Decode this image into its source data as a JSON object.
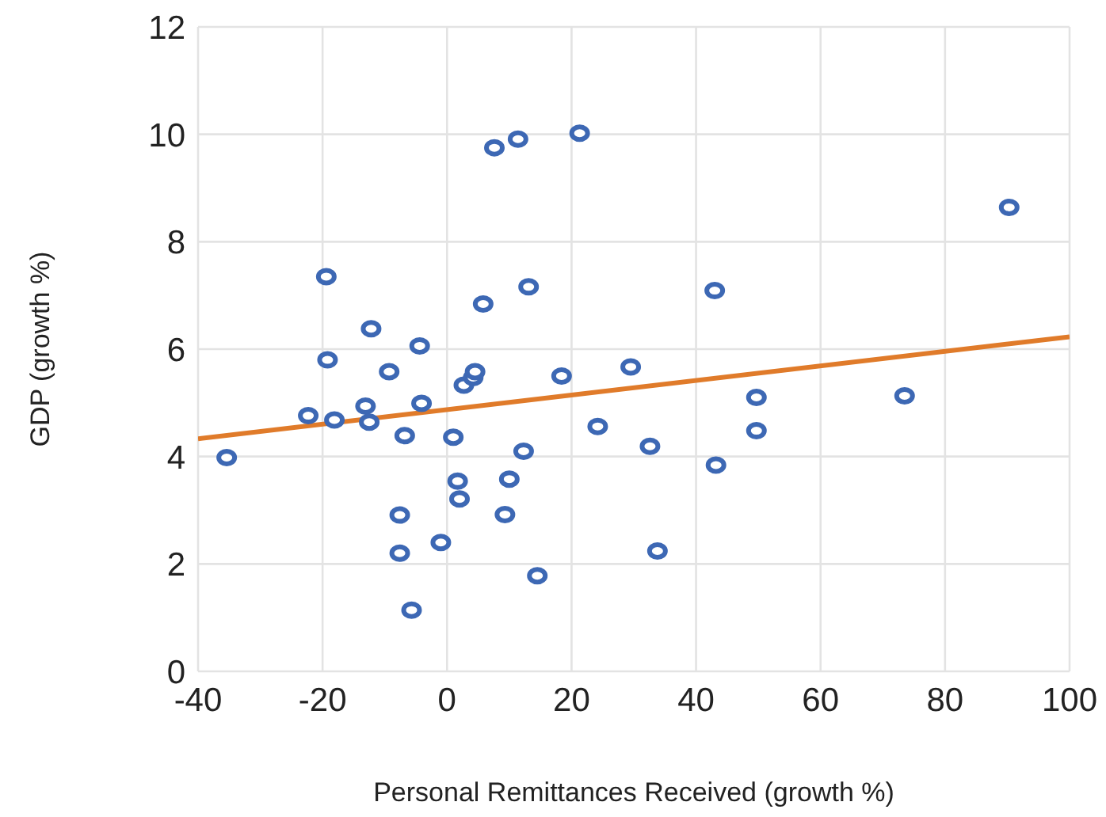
{
  "chart_data": {
    "type": "scatter",
    "xlabel": "Personal Remittances Received (growth %)",
    "ylabel": "GDP (growth %)",
    "xlim": [
      -40,
      100
    ],
    "xticks": [
      -40,
      -20,
      0,
      20,
      40,
      60,
      80,
      100
    ],
    "ylim": [
      0,
      12
    ],
    "yticks": [
      0,
      2,
      4,
      6,
      8,
      10,
      12
    ],
    "grid": true,
    "marker": "circle",
    "series": [
      {
        "color": "#3d68b4",
        "x": [
          -35.4,
          -19.4,
          -19.2,
          -22.3,
          -18.1,
          -12.2,
          -13.1,
          -12.5,
          -9.3,
          -4.4,
          -4.1,
          -6.8,
          -7.6,
          -7.6,
          -5.7,
          -1.0,
          1.0,
          1.7,
          2.0,
          2.7,
          4.2,
          4.5,
          5.8,
          7.6,
          9.3,
          10.0,
          11.4,
          12.3,
          13.1,
          14.5,
          18.4,
          21.3,
          24.2,
          29.5,
          32.6,
          33.8,
          43.0,
          43.2,
          49.7,
          49.7,
          73.5,
          90.3
        ],
        "values": [
          3.98,
          7.35,
          5.8,
          4.76,
          4.68,
          6.38,
          4.94,
          4.64,
          5.58,
          6.06,
          4.99,
          4.39,
          2.91,
          2.2,
          1.14,
          2.4,
          4.36,
          3.54,
          3.21,
          5.33,
          5.47,
          5.58,
          6.84,
          9.75,
          2.92,
          3.58,
          9.91,
          4.1,
          7.16,
          1.78,
          5.5,
          10.02,
          4.56,
          5.67,
          4.19,
          2.24,
          7.09,
          3.84,
          5.1,
          4.48,
          5.13,
          8.64
        ]
      },
      {
        "type": "line",
        "marker": "none",
        "color": "#e07b2a",
        "x": [
          -40,
          100
        ],
        "values": [
          4.33,
          6.23
        ]
      }
    ]
  }
}
